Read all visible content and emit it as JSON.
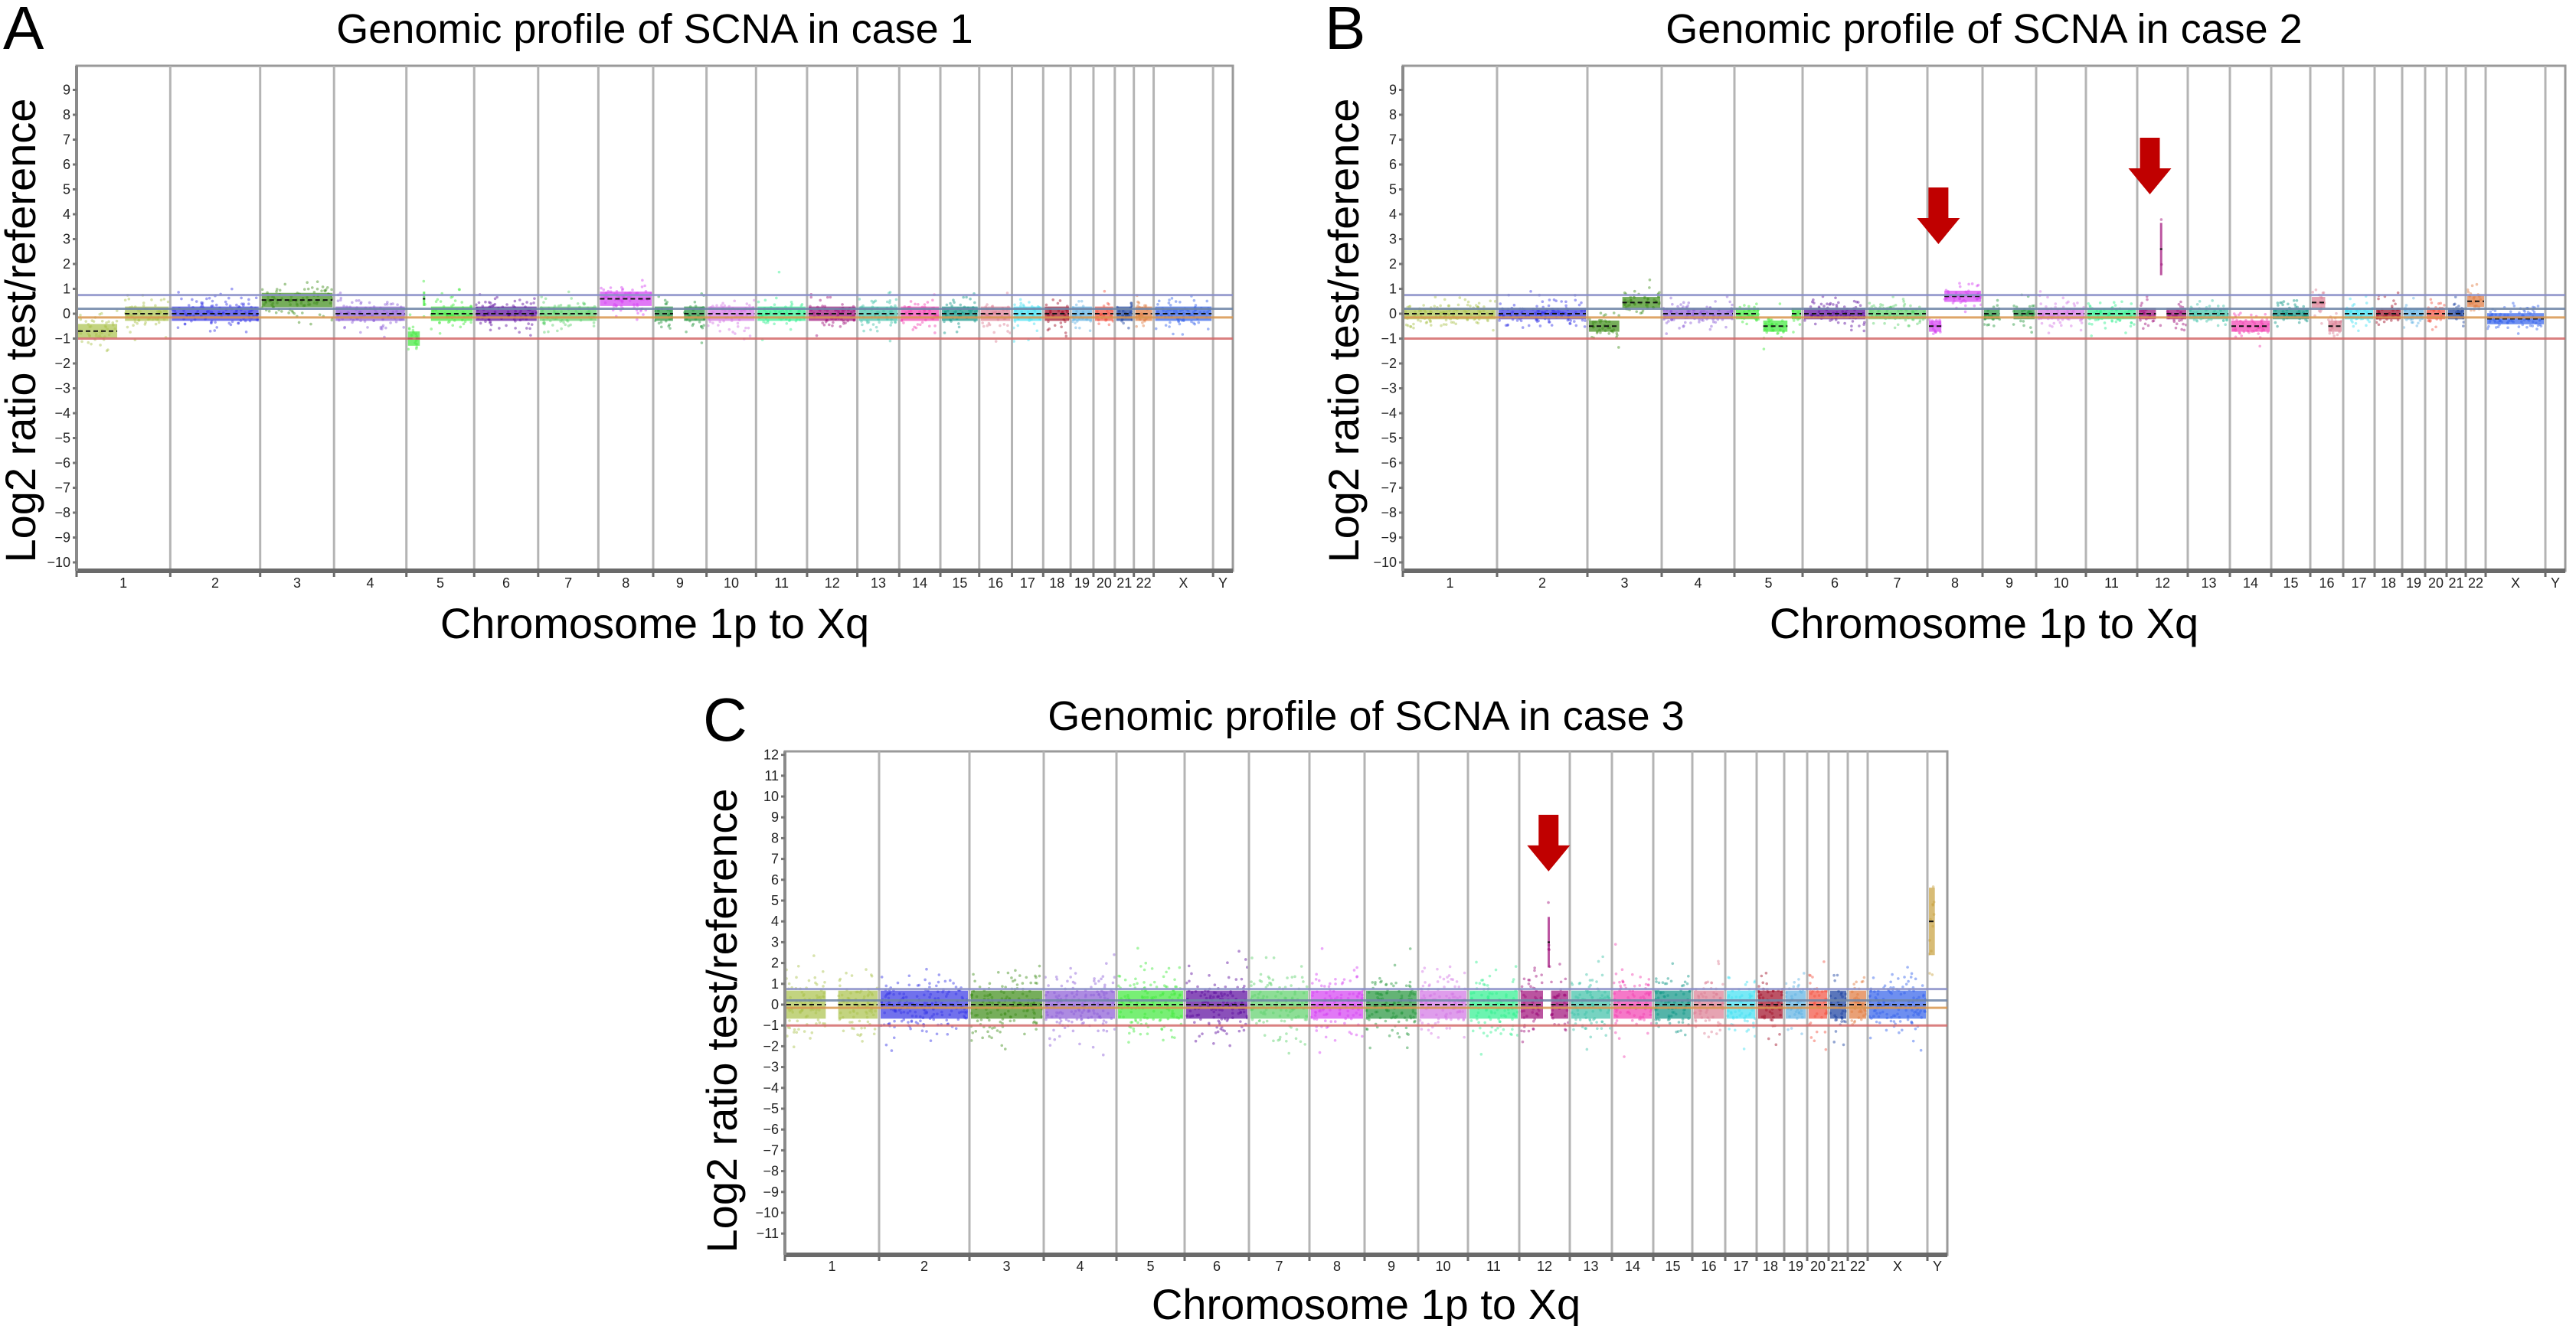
{
  "chart_data": [
    {
      "panel_label": "A",
      "type": "scatter",
      "title": "Genomic profile of SCNA in case 1",
      "xlabel": "Chromosome 1p to Xq",
      "ylabel": "Log2 ratio test/reference",
      "ylim": [
        -10.3,
        10
      ],
      "yticks": [
        -10,
        -9,
        -8,
        -7,
        -6,
        -5,
        -4,
        -3,
        -2,
        -1,
        0,
        1,
        2,
        3,
        4,
        5,
        6,
        7,
        8,
        9
      ],
      "ytick_labels": [
        "−10",
        "−9",
        "−8",
        "−7",
        "−6",
        "−5",
        "−4",
        "−3",
        "−2",
        "−1",
        "0",
        "1",
        "2",
        "3",
        "4",
        "5",
        "6",
        "7",
        "8",
        "9"
      ],
      "categories": [
        "1",
        "2",
        "3",
        "4",
        "5",
        "6",
        "7",
        "8",
        "9",
        "10",
        "11",
        "12",
        "13",
        "14",
        "15",
        "16",
        "17",
        "18",
        "19",
        "20",
        "21",
        "22",
        "X",
        "Y"
      ],
      "thresholds": [
        {
          "value": 0.75,
          "color": "#8a90c8"
        },
        {
          "value": 0.2,
          "color": "#6f86a8"
        },
        {
          "value": -0.15,
          "color": "#d9964e"
        },
        {
          "value": -1.0,
          "color": "#d46a6a"
        }
      ],
      "noise_sd": 0.32,
      "segments": {
        "1": [
          [
            0,
            0.45,
            -0.7
          ],
          [
            0.5,
            1,
            0.0
          ]
        ],
        "3": [
          [
            0,
            1,
            0.55
          ]
        ],
        "5": [
          [
            0,
            0.22,
            -1.0
          ],
          [
            0.22,
            0.3,
            0.6
          ],
          [
            0.34,
            1,
            0.0
          ]
        ],
        "8": [
          [
            0,
            1,
            0.6
          ]
        ],
        "9": [
          [
            0,
            0.4,
            0.0
          ],
          [
            0.55,
            1,
            0.0
          ]
        ],
        "Y": []
      },
      "annotations": []
    },
    {
      "panel_label": "B",
      "type": "scatter",
      "title": "Genomic profile of SCNA in case 2",
      "xlabel": "Chromosome 1p to Xq",
      "ylabel": "Log2 ratio test/reference",
      "ylim": [
        -10.3,
        10
      ],
      "yticks": [
        -10,
        -9,
        -8,
        -7,
        -6,
        -5,
        -4,
        -3,
        -2,
        -1,
        0,
        1,
        2,
        3,
        4,
        5,
        6,
        7,
        8,
        9
      ],
      "ytick_labels": [
        "−10",
        "−9",
        "−8",
        "−7",
        "−6",
        "−5",
        "−4",
        "−3",
        "−2",
        "−1",
        "0",
        "1",
        "2",
        "3",
        "4",
        "5",
        "6",
        "7",
        "8",
        "9"
      ],
      "categories": [
        "1",
        "2",
        "3",
        "4",
        "5",
        "6",
        "7",
        "8",
        "9",
        "10",
        "11",
        "12",
        "13",
        "14",
        "15",
        "16",
        "17",
        "18",
        "19",
        "20",
        "21",
        "22",
        "X",
        "Y"
      ],
      "thresholds": [
        {
          "value": 0.75,
          "color": "#8a90c8"
        },
        {
          "value": 0.2,
          "color": "#6f86a8"
        },
        {
          "value": -0.15,
          "color": "#d9964e"
        },
        {
          "value": -1.0,
          "color": "#d46a6a"
        }
      ],
      "noise_sd": 0.25,
      "segments": {
        "3": [
          [
            0,
            0.45,
            -0.5
          ],
          [
            0.45,
            1,
            0.45
          ]
        ],
        "5": [
          [
            0,
            0.38,
            0.0
          ],
          [
            0.4,
            0.8,
            -0.5
          ],
          [
            0.82,
            1,
            0.0
          ]
        ],
        "8": [
          [
            0,
            0.28,
            -0.5
          ],
          [
            0.28,
            1,
            0.7
          ]
        ],
        "9": [
          [
            0,
            0.35,
            0.0
          ],
          [
            0.55,
            1,
            0.0
          ]
        ],
        "12": [
          [
            0,
            0.4,
            0.0
          ],
          [
            0.42,
            0.5,
            2.6
          ],
          [
            0.55,
            1,
            0.0
          ]
        ],
        "14": [
          [
            0,
            1,
            -0.5
          ]
        ],
        "16": [
          [
            0,
            0.5,
            0.45
          ],
          [
            0.5,
            1,
            -0.5
          ]
        ],
        "22": [
          [
            0,
            1,
            0.5
          ]
        ],
        "X": [
          [
            0,
            1,
            -0.2
          ]
        ],
        "Y": []
      },
      "annotations": [
        {
          "type": "arrow",
          "chromosome": "8",
          "position": 0.2,
          "tip_log2": 2.8,
          "color": "#c00000"
        },
        {
          "type": "arrow",
          "chromosome": "12",
          "position": 0.25,
          "tip_log2": 4.8,
          "color": "#c00000"
        }
      ]
    },
    {
      "panel_label": "C",
      "type": "scatter",
      "title": "Genomic profile of SCNA in case 3",
      "xlabel": "Chromosome 1p to Xq",
      "ylabel": "Log2 ratio test/reference",
      "ylim": [
        -12,
        12.2
      ],
      "yticks": [
        -11,
        -10,
        -9,
        -8,
        -7,
        -6,
        -5,
        -4,
        -3,
        -2,
        -1,
        0,
        1,
        2,
        3,
        4,
        5,
        6,
        7,
        8,
        9,
        10,
        11,
        12
      ],
      "ytick_labels": [
        "−11",
        "−10",
        "−9",
        "−8",
        "−7",
        "−6",
        "−5",
        "−4",
        "−3",
        "−2",
        "−1",
        "0",
        "1",
        "2",
        "3",
        "4",
        "5",
        "6",
        "7",
        "8",
        "9",
        "10",
        "11",
        "12"
      ],
      "categories": [
        "1",
        "2",
        "3",
        "4",
        "5",
        "6",
        "7",
        "8",
        "9",
        "10",
        "11",
        "12",
        "13",
        "14",
        "15",
        "16",
        "17",
        "18",
        "19",
        "20",
        "21",
        "22",
        "X",
        "Y"
      ],
      "thresholds": [
        {
          "value": 0.75,
          "color": "#8a90c8"
        },
        {
          "value": 0.2,
          "color": "#6f86a8"
        },
        {
          "value": -0.15,
          "color": "#d9964e"
        },
        {
          "value": -1.0,
          "color": "#d46a6a"
        }
      ],
      "noise_sd": 0.75,
      "segments": {
        "1": [
          [
            0,
            0.45,
            0.0
          ],
          [
            0.55,
            1,
            0.0
          ]
        ],
        "12": [
          [
            0,
            0.5,
            0.0
          ],
          [
            0.53,
            0.6,
            3.0
          ],
          [
            0.6,
            1,
            0.0
          ]
        ],
        "Y": [
          [
            0,
            0.45,
            4.0
          ]
        ]
      },
      "annotations": [
        {
          "type": "arrow",
          "chromosome": "12",
          "position": 0.58,
          "tip_log2": 6.4,
          "color": "#c00000"
        }
      ]
    }
  ],
  "chromosome_colors": {
    "1": "#a9c24a",
    "2": "#3434e6",
    "3": "#3c8c16",
    "4": "#8a5ad6",
    "5": "#3ee83a",
    "6": "#58069c",
    "7": "#5cd06a",
    "8": "#d43ef2",
    "9": "#22943a",
    "10": "#d274e4",
    "11": "#2ef08e",
    "12": "#9e0c78",
    "13": "#3cc0a6",
    "14": "#f23eb0",
    "15": "#0c9484",
    "16": "#dc7c92",
    "17": "#3ee0f2",
    "18": "#a00a24",
    "19": "#5cb0e2",
    "20": "#f2503e",
    "21": "#143c9e",
    "22": "#e0783c",
    "X": "#3060ea",
    "Y": "#c8a03c"
  }
}
